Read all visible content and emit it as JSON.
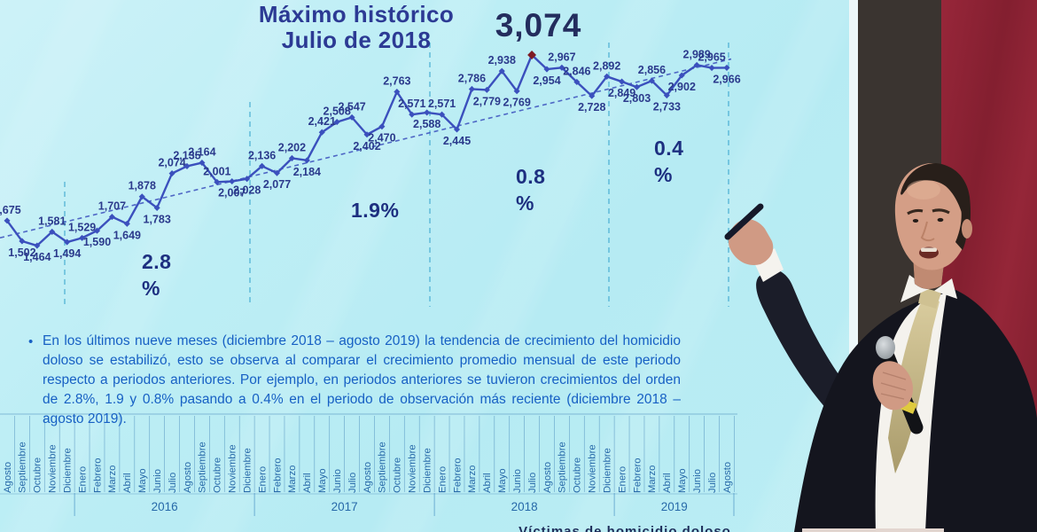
{
  "slide": {
    "title_line1": "Máximo histórico",
    "title_line2": "Julio de 2018",
    "max_value_label": "3,074",
    "bullet_marker": "•",
    "bullet_text": "En los últimos nueve meses (diciembre 2018 – agosto 2019) la tendencia de crecimiento del homicidio doloso se estabilizó, esto se observa al comparar el crecimiento promedio mensual de este periodo respecto a periodos anteriores. Por ejemplo, en periodos anteriores se tuvieron crecimientos del orden de 2.8%, 1.9 y 0.8% pasando a 0.4% en el periodo de observación más reciente (diciembre 2018 – agosto 2019).",
    "caption_partial": "Víctimas de homicidio doloso"
  },
  "chart_data": {
    "type": "line",
    "title": "Máximo histórico Julio de 2018",
    "ylim": [
      1400,
      3150
    ],
    "grid": false,
    "legend_position": "none",
    "trendline": "dashed linear upward trend",
    "max_point": {
      "label": "3,074",
      "month": "Julio",
      "year": "2018",
      "value": 3074
    },
    "year_groups": [
      {
        "label": "",
        "count": 5
      },
      {
        "label": "2016",
        "count": 12
      },
      {
        "label": "2017",
        "count": 12
      },
      {
        "label": "2018",
        "count": 12
      },
      {
        "label": "2019",
        "count": 8
      }
    ],
    "months": [
      "Agosto",
      "Septiembre",
      "Octubre",
      "Noviembre",
      "Diciembre",
      "Enero",
      "Febrero",
      "Marzo",
      "Abril",
      "Mayo",
      "Junio",
      "Julio",
      "Agosto",
      "Septiembre",
      "Octubre",
      "Noviembre",
      "Diciembre",
      "Enero",
      "Febrero",
      "Marzo",
      "Abril",
      "Mayo",
      "Junio",
      "Julio",
      "Agosto",
      "Septiembre",
      "Octubre",
      "Noviembre",
      "Diciembre",
      "Enero",
      "Febrero",
      "Marzo",
      "Abril",
      "Mayo",
      "Junio",
      "Julio",
      "Agosto",
      "Septiembre",
      "Octubre",
      "Noviembre",
      "Diciembre",
      "Enero",
      "Febrero",
      "Marzo",
      "Abril",
      "Mayo",
      "Junio",
      "Julio",
      "Agosto"
    ],
    "values": [
      1675,
      1502,
      1464,
      1581,
      1494,
      1529,
      1590,
      1707,
      1649,
      1878,
      1783,
      2074,
      2135,
      2164,
      2001,
      2007,
      2028,
      2136,
      2077,
      2202,
      2184,
      2421,
      2508,
      2547,
      2402,
      2470,
      2763,
      2571,
      2588,
      2571,
      2445,
      2786,
      2779,
      2938,
      2769,
      3074,
      2954,
      2967,
      2846,
      2728,
      2892,
      2849,
      2803,
      2856,
      2733,
      2902,
      2989,
      2965,
      2966
    ],
    "label_side": [
      "a",
      "b",
      "b",
      "a",
      "b",
      "a",
      "b",
      "a",
      "b",
      "a",
      "b",
      "a",
      "a",
      "a",
      "a",
      "b",
      "b",
      "a",
      "b",
      "a",
      "b",
      "a",
      "a",
      "a",
      "b",
      "b",
      "a",
      "a",
      "b",
      "a",
      "b",
      "a",
      "b",
      "a",
      "b",
      "x",
      "b",
      "a",
      "a",
      "b",
      "a",
      "b",
      "b",
      "a",
      "b",
      "b",
      "a",
      "a",
      "b"
    ],
    "growth_annotations": [
      {
        "label": "2.8\n%",
        "period": "2016"
      },
      {
        "label": "1.9%",
        "period": "2017"
      },
      {
        "label": "0.8\n%",
        "period": "2018"
      },
      {
        "label": "0.4\n%",
        "period": "diciembre 2018 – agosto 2019"
      }
    ]
  },
  "colors": {
    "screen_bg": "#bdeef5",
    "series_line": "#3b50bd",
    "point_label": "#2b3a8c",
    "max_marker": "#7e1b24",
    "title_text": "#2c3a94",
    "annotation_navy": "#1d2f80",
    "bullet_blue": "#1760c4",
    "axis_blue": "#2769a9",
    "divider_teal": "#49aed2",
    "wall_red": "#8c2133",
    "dark_panel": "#3a3430",
    "suit_dark": "#14151e",
    "tie_gold": "#c9bd91"
  }
}
